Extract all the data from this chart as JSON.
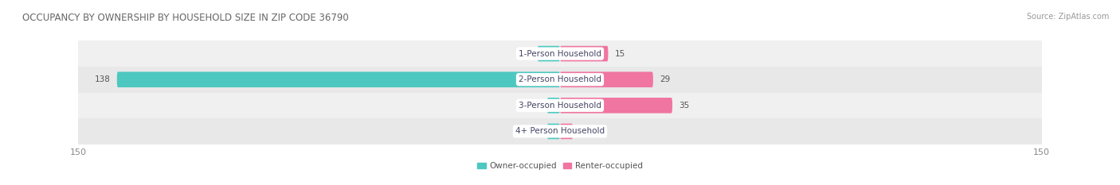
{
  "title": "OCCUPANCY BY OWNERSHIP BY HOUSEHOLD SIZE IN ZIP CODE 36790",
  "source": "Source: ZipAtlas.com",
  "categories": [
    "1-Person Household",
    "2-Person Household",
    "3-Person Household",
    "4+ Person Household"
  ],
  "owner_values": [
    7,
    138,
    0,
    0
  ],
  "renter_values": [
    15,
    29,
    35,
    0
  ],
  "owner_color": "#4dc8c0",
  "renter_color": "#f075a0",
  "row_bg_even": "#f0f0f0",
  "row_bg_odd": "#e8e8e8",
  "axis_max": 150,
  "title_fontsize": 8.5,
  "source_fontsize": 7,
  "value_fontsize": 7.5,
  "cat_fontsize": 7.5,
  "tick_fontsize": 8,
  "legend_fontsize": 7.5,
  "title_color": "#666666",
  "source_color": "#999999",
  "value_color": "#555555",
  "cat_color": "#444466",
  "tick_color": "#888888"
}
